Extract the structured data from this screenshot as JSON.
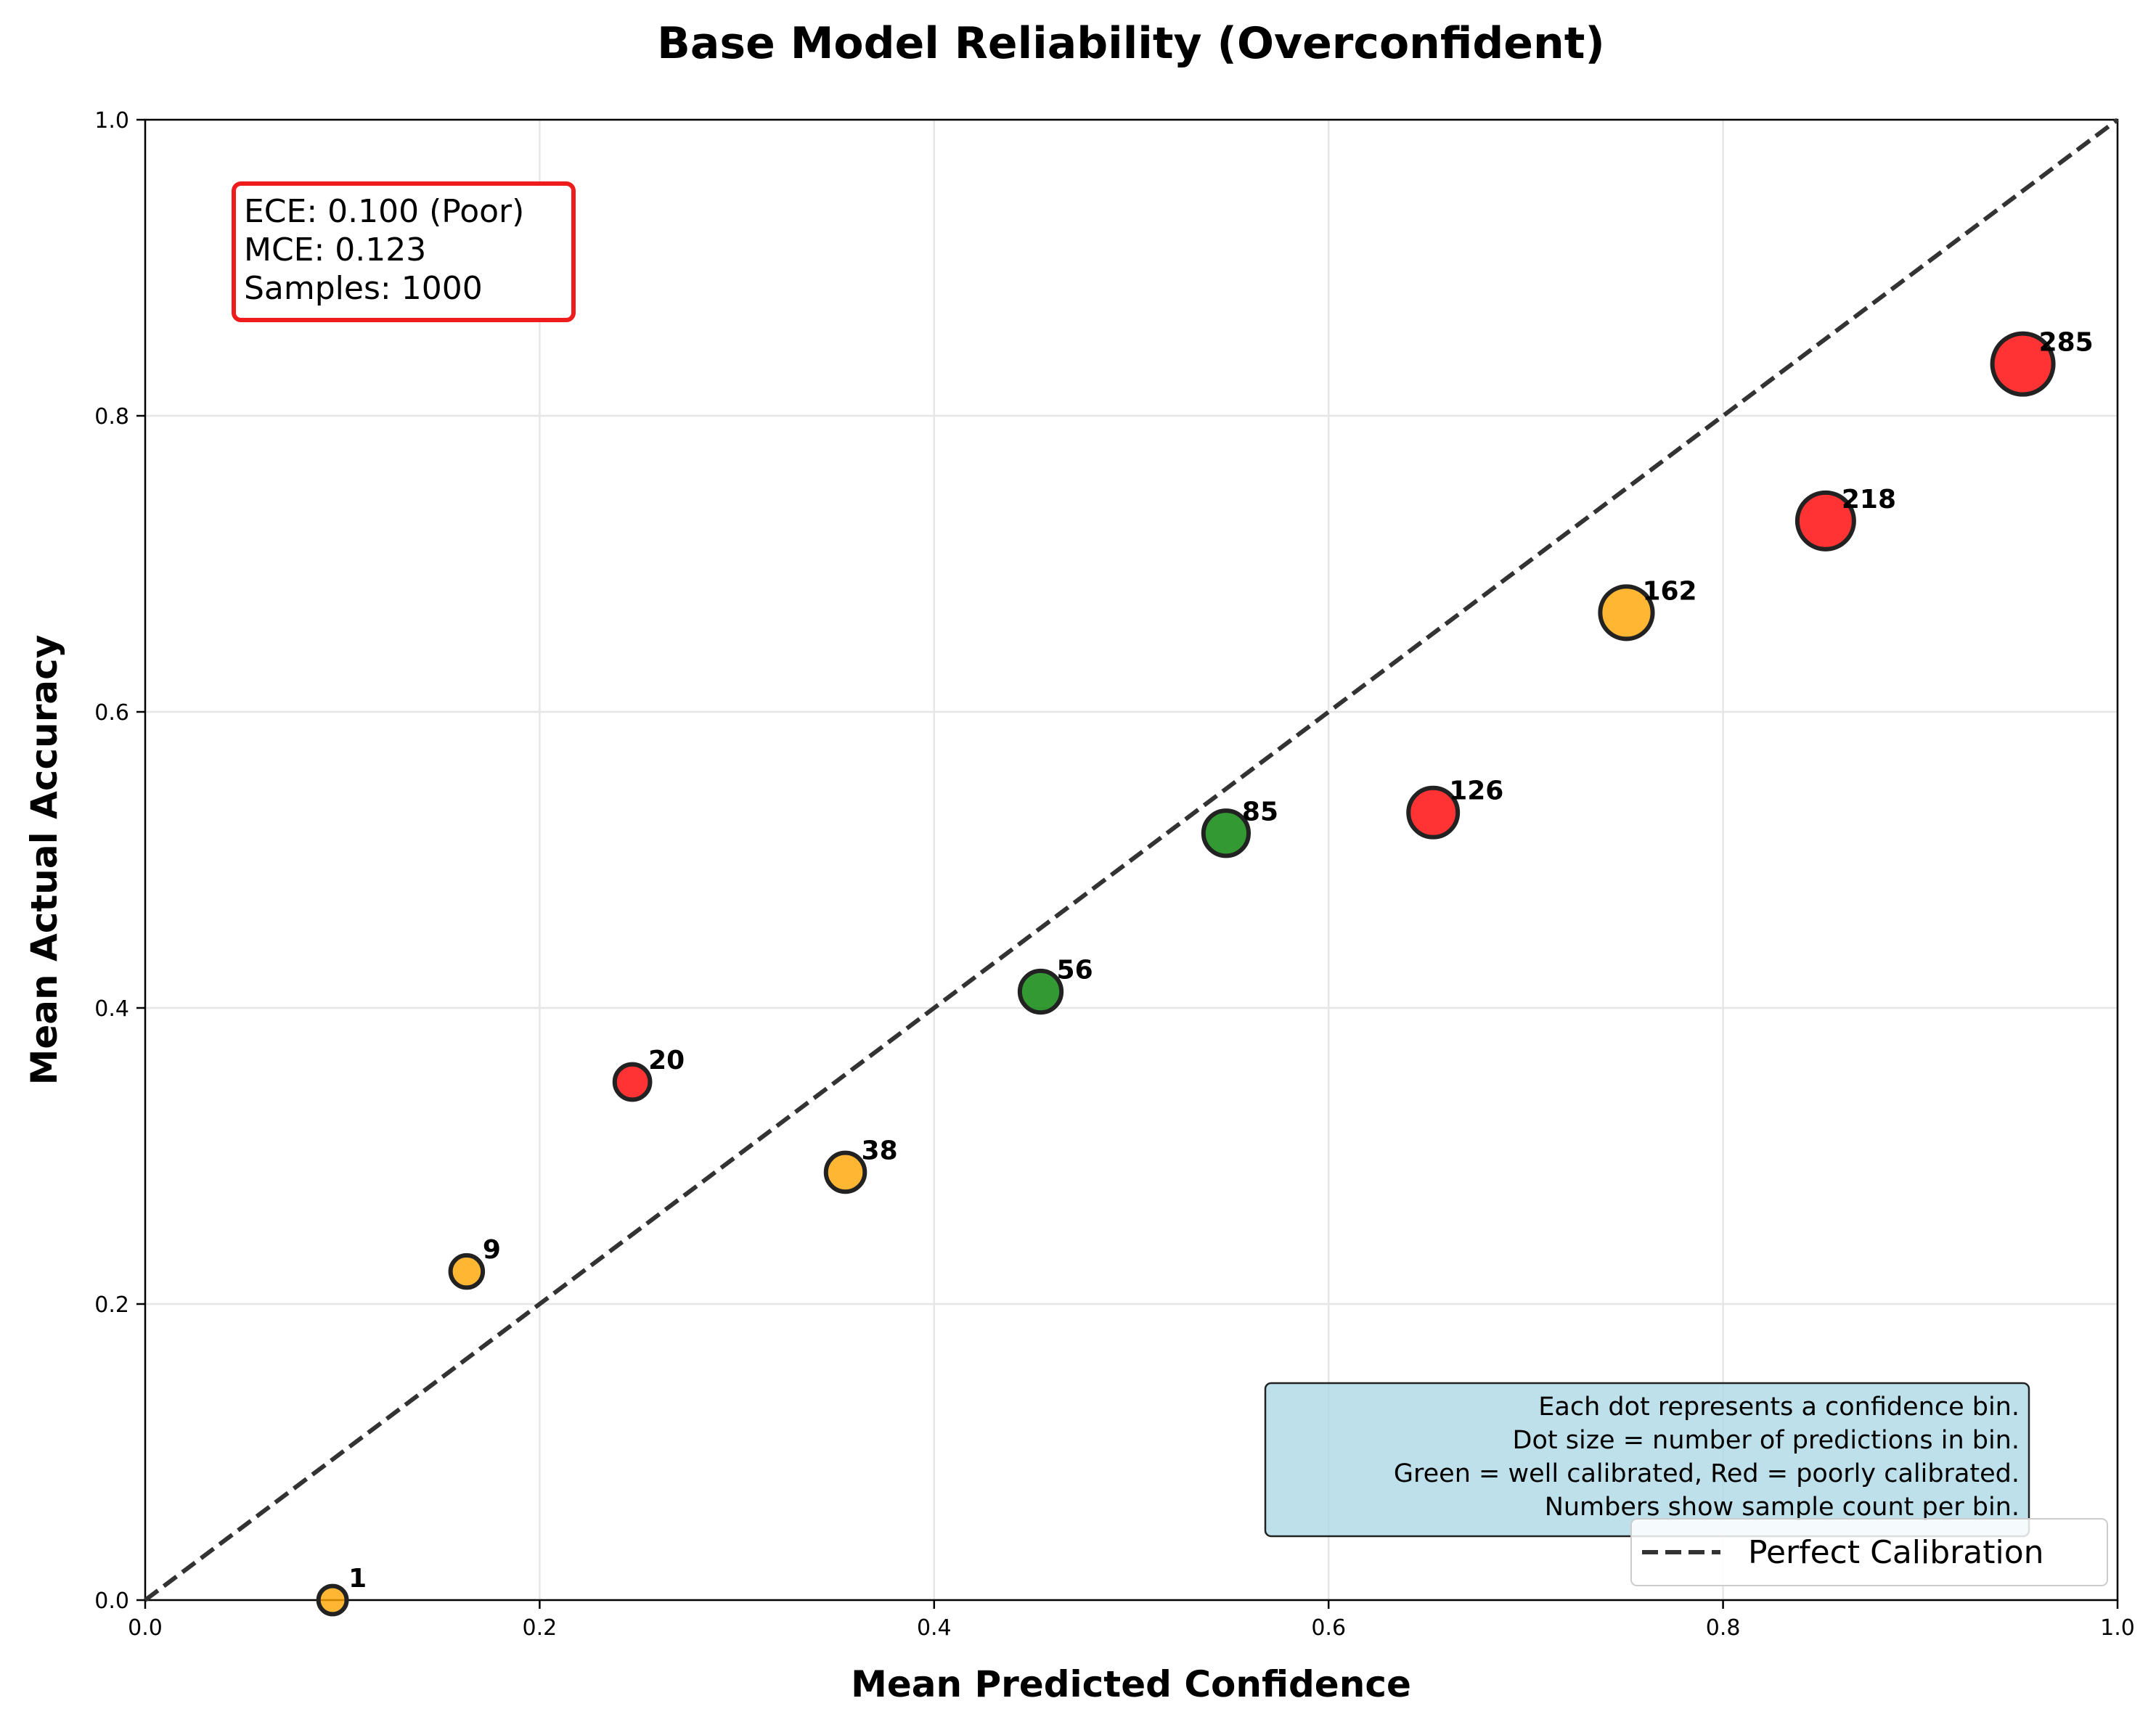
{
  "chart_data": {
    "type": "scatter",
    "title": "Base Model Reliability (Overconfident)",
    "xlabel": "Mean Predicted Confidence",
    "ylabel": "Mean Actual Accuracy",
    "xlim": [
      0.0,
      1.0
    ],
    "ylim": [
      0.0,
      1.0
    ],
    "xticks": [
      "0.0",
      "0.2",
      "0.4",
      "0.6",
      "0.8",
      "1.0"
    ],
    "yticks": [
      "0.0",
      "0.2",
      "0.4",
      "0.6",
      "0.8",
      "1.0"
    ],
    "grid": true,
    "points": [
      {
        "x": 0.095,
        "y": 0.0,
        "count": 1,
        "label": "1",
        "color": "#ffa500"
      },
      {
        "x": 0.163,
        "y": 0.222,
        "count": 9,
        "label": "9",
        "color": "#ffa500"
      },
      {
        "x": 0.247,
        "y": 0.35,
        "count": 20,
        "label": "20",
        "color": "#ff0000"
      },
      {
        "x": 0.355,
        "y": 0.289,
        "count": 38,
        "label": "38",
        "color": "#ffa500"
      },
      {
        "x": 0.454,
        "y": 0.411,
        "count": 56,
        "label": "56",
        "color": "#008000"
      },
      {
        "x": 0.548,
        "y": 0.518,
        "count": 85,
        "label": "85",
        "color": "#008000"
      },
      {
        "x": 0.653,
        "y": 0.532,
        "count": 126,
        "label": "126",
        "color": "#ff0000"
      },
      {
        "x": 0.751,
        "y": 0.667,
        "count": 162,
        "label": "162",
        "color": "#ffa500"
      },
      {
        "x": 0.852,
        "y": 0.729,
        "count": 218,
        "label": "218",
        "color": "#ff0000"
      },
      {
        "x": 0.952,
        "y": 0.835,
        "count": 285,
        "label": "285",
        "color": "#ff0000"
      }
    ],
    "reference_line": {
      "name": "Perfect Calibration",
      "from": [
        0,
        0
      ],
      "to": [
        1,
        1
      ],
      "style": "dashed",
      "color": "#333333"
    },
    "legend": {
      "position": "bottom-right",
      "entries": [
        "Perfect Calibration"
      ]
    },
    "stats_box": {
      "position": "top-left",
      "lines": [
        "ECE: 0.100 (Poor)",
        "MCE: 0.123",
        "Samples: 1000"
      ],
      "border_color": "#ee1c1c"
    },
    "note_box": {
      "position": "bottom-right",
      "lines": [
        "Each dot represents a confidence bin.",
        "Dot size = number of predictions in bin.",
        "Green = well calibrated, Red = poorly calibrated.",
        "Numbers show sample count per bin."
      ],
      "background": "#add8e6"
    }
  }
}
